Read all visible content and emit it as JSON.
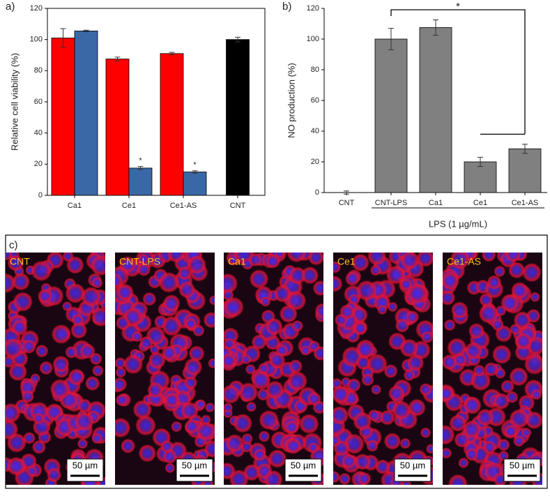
{
  "chart_data": [
    {
      "type": "bar",
      "panel_label": "a)",
      "ylabel": "Relative cell viability (%)",
      "categories": [
        "Ca1",
        "Ce1",
        "Ce1-AS",
        "CNT"
      ],
      "series": [
        {
          "color": "#ff0000",
          "values": [
            101,
            87.5,
            91,
            null
          ],
          "errors": [
            6,
            1.2,
            0.8,
            null
          ],
          "significance": [
            null,
            null,
            null,
            null
          ]
        },
        {
          "color": "#3a68a6",
          "values": [
            105.5,
            17.5,
            15,
            null
          ],
          "errors": [
            0.5,
            1,
            0.8,
            null
          ],
          "significance": [
            null,
            "*",
            "*",
            null
          ]
        },
        {
          "color": "#000000",
          "values": [
            null,
            null,
            null,
            100
          ],
          "errors": [
            null,
            null,
            null,
            1.5
          ],
          "significance": [
            null,
            null,
            null,
            null
          ]
        }
      ],
      "ylim": [
        0,
        120
      ],
      "yticks": [
        0,
        20,
        40,
        60,
        80,
        100,
        120
      ]
    },
    {
      "type": "bar",
      "panel_label": "b)",
      "ylabel": "NO production (%)",
      "categories": [
        "CNT",
        "CNT-LPS",
        "Ca1",
        "Ce1",
        "Ce1-AS"
      ],
      "series": [
        {
          "color": "#808080",
          "values": [
            0,
            100,
            107.5,
            20,
            28.5
          ],
          "errors": [
            1,
            7,
            5,
            3,
            3
          ]
        }
      ],
      "ylim": [
        0,
        120
      ],
      "yticks": [
        0,
        20,
        40,
        60,
        80,
        100,
        120
      ],
      "bracket_label": "*",
      "group_label": "LPS (1 µg/mL)"
    }
  ],
  "micrographs": {
    "panel_label": "c)",
    "panels": [
      {
        "label": "CNT",
        "scale_bar": "50 µm"
      },
      {
        "label": "CNT-LPS",
        "scale_bar": "50 µm"
      },
      {
        "label": "Ca1",
        "scale_bar": "50 µm"
      },
      {
        "label": "Ce1",
        "scale_bar": "50 µm"
      },
      {
        "label": "Ce1-AS",
        "scale_bar": "50 µm"
      }
    ]
  }
}
